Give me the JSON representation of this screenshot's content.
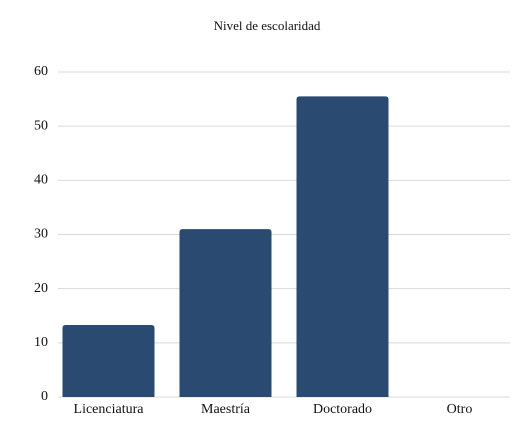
{
  "chart_data": {
    "type": "bar",
    "title": "Nivel de escolaridad",
    "categories": [
      "Licenciatura",
      "Maestría",
      "Doctorado",
      "Otro"
    ],
    "values": [
      13.3,
      31,
      55.5,
      0
    ],
    "color": "#2b4a72",
    "ylim": [
      0,
      60
    ],
    "yticks": [
      0,
      10,
      20,
      30,
      40,
      50,
      60
    ],
    "grid": true
  }
}
